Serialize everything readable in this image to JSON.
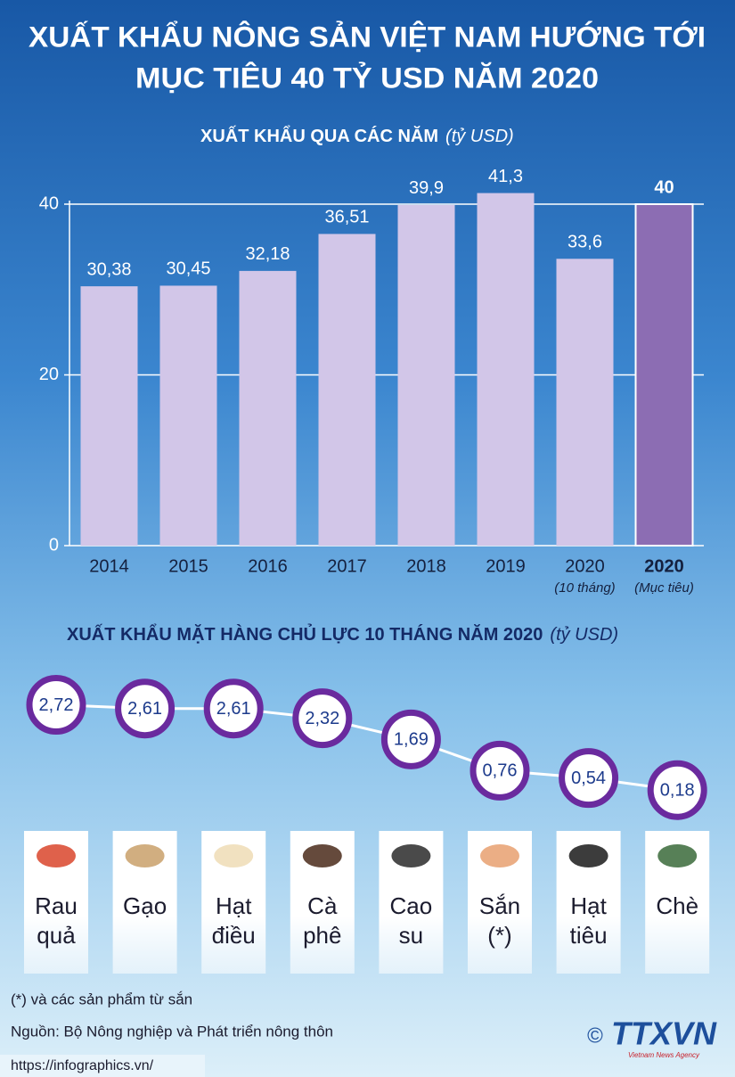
{
  "title": [
    "XUẤT KHẨU NÔNG SẢN VIỆT NAM HƯỚNG TỚI",
    "MỤC TIÊU 40 TỶ USD NĂM 2020"
  ],
  "chart_data": [
    {
      "type": "bar",
      "title": "XUẤT KHẨU QUA CÁC NĂM",
      "unit": "(tỷ USD)",
      "categories": [
        "2014",
        "2015",
        "2016",
        "2017",
        "2018",
        "2019",
        "2020",
        "2020"
      ],
      "category_notes": [
        null,
        null,
        null,
        null,
        null,
        null,
        "(10 tháng)",
        "(Mục tiêu)"
      ],
      "values": [
        30.38,
        30.45,
        32.18,
        36.51,
        39.9,
        41.3,
        33.6,
        40
      ],
      "value_labels": [
        "30,38",
        "30,45",
        "32,18",
        "36,51",
        "39,9",
        "41,3",
        "33,6",
        "40"
      ],
      "colors": [
        "#d2c6e8",
        "#d2c6e8",
        "#d2c6e8",
        "#d2c6e8",
        "#d2c6e8",
        "#d2c6e8",
        "#d2c6e8",
        "#8c6db3"
      ],
      "highlight_index": 7,
      "ylim": [
        0,
        40
      ],
      "yticks": [
        0,
        20,
        40
      ],
      "grid": true
    },
    {
      "type": "line",
      "title": "XUẤT KHẨU MẶT HÀNG CHỦ LỰC 10 THÁNG NĂM 2020",
      "unit": "(tỷ USD)",
      "categories": [
        "Rau quả",
        "Gạo",
        "Hạt điều",
        "Cà phê",
        "Cao su",
        "Sắn (*)",
        "Hạt tiêu",
        "Chè"
      ],
      "values": [
        2.72,
        2.61,
        2.61,
        2.32,
        1.69,
        0.76,
        0.54,
        0.18
      ],
      "value_labels": [
        "2,72",
        "2,61",
        "2,61",
        "2,32",
        "1,69",
        "0,76",
        "0,54",
        "0,18"
      ],
      "color": "#6a2a9e",
      "ylim": [
        0,
        3
      ]
    }
  ],
  "footnotes": [
    "(*) và các sản phẩm từ sắn",
    "Nguồn: Bộ Nông nghiệp và Phát triển nông thôn"
  ],
  "url": "https://infographics.vn/",
  "logo": {
    "copyright": "©",
    "name": "TTXVN",
    "tagline": "Vietnam News Agency"
  }
}
